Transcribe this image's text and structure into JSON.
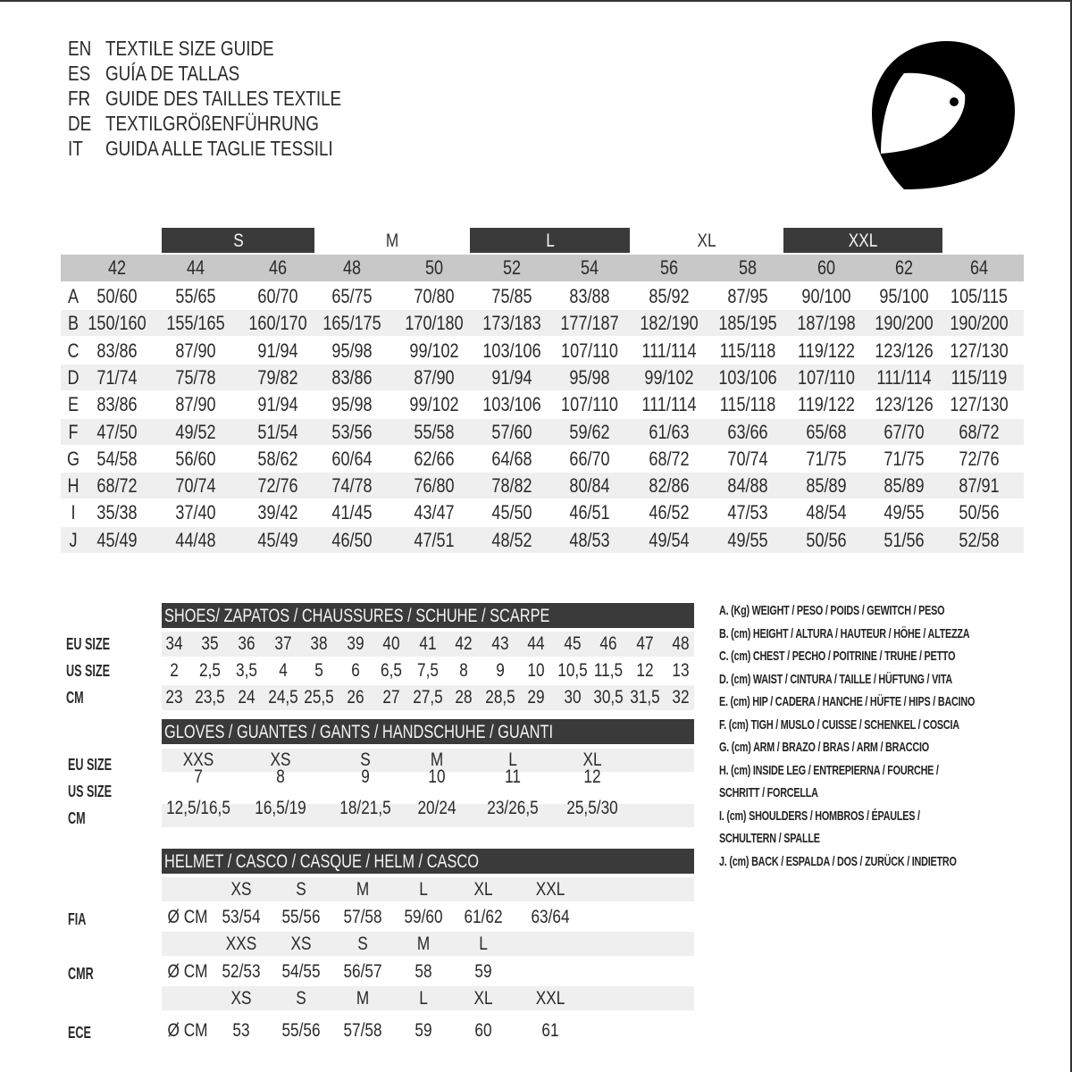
{
  "titles": [
    {
      "code": "EN",
      "text": "TEXTILE SIZE GUIDE"
    },
    {
      "code": "ES",
      "text": "GUÍA DE TALLAS"
    },
    {
      "code": "FR",
      "text": "GUIDE DES TAILLES TEXTILE"
    },
    {
      "code": "DE",
      "text": "TEXTILGRÖßENFÜHRUNG"
    },
    {
      "code": "IT",
      "text": "GUIDA ALLE TAGLIE TESSILI"
    }
  ],
  "icon": "helmet-icon",
  "colors": {
    "dark_bar": "#3a3a3a",
    "header_gray": "#c8c8c8",
    "stripe": "#efefef"
  },
  "textile": {
    "size_bands": [
      "S",
      "M",
      "L",
      "XL",
      "XXL"
    ],
    "columns": [
      "42",
      "44",
      "46",
      "48",
      "50",
      "52",
      "54",
      "56",
      "58",
      "60",
      "62",
      "64"
    ],
    "rows": [
      {
        "label": "A",
        "values": [
          "50/60",
          "55/65",
          "60/70",
          "65/75",
          "70/80",
          "75/85",
          "83/88",
          "85/92",
          "87/95",
          "90/100",
          "95/100",
          "105/115"
        ]
      },
      {
        "label": "B",
        "values": [
          "150/160",
          "155/165",
          "160/170",
          "165/175",
          "170/180",
          "173/183",
          "177/187",
          "182/190",
          "185/195",
          "187/198",
          "190/200",
          "190/200"
        ]
      },
      {
        "label": "C",
        "values": [
          "83/86",
          "87/90",
          "91/94",
          "95/98",
          "99/102",
          "103/106",
          "107/110",
          "111/114",
          "115/118",
          "119/122",
          "123/126",
          "127/130"
        ]
      },
      {
        "label": "D",
        "values": [
          "71/74",
          "75/78",
          "79/82",
          "83/86",
          "87/90",
          "91/94",
          "95/98",
          "99/102",
          "103/106",
          "107/110",
          "111/114",
          "115/119"
        ]
      },
      {
        "label": "E",
        "values": [
          "83/86",
          "87/90",
          "91/94",
          "95/98",
          "99/102",
          "103/106",
          "107/110",
          "111/114",
          "115/118",
          "119/122",
          "123/126",
          "127/130"
        ]
      },
      {
        "label": "F",
        "values": [
          "47/50",
          "49/52",
          "51/54",
          "53/56",
          "55/58",
          "57/60",
          "59/62",
          "61/63",
          "63/66",
          "65/68",
          "67/70",
          "68/72"
        ]
      },
      {
        "label": "G",
        "values": [
          "54/58",
          "56/60",
          "58/62",
          "60/64",
          "62/66",
          "64/68",
          "66/70",
          "68/72",
          "70/74",
          "71/75",
          "71/75",
          "72/76"
        ]
      },
      {
        "label": "H",
        "values": [
          "68/72",
          "70/74",
          "72/76",
          "74/78",
          "76/80",
          "78/82",
          "80/84",
          "82/86",
          "84/88",
          "85/89",
          "85/89",
          "87/91"
        ]
      },
      {
        "label": "I",
        "values": [
          "35/38",
          "37/40",
          "39/42",
          "41/45",
          "43/47",
          "45/50",
          "46/51",
          "46/52",
          "47/53",
          "48/54",
          "49/55",
          "50/56"
        ]
      },
      {
        "label": "J",
        "values": [
          "45/49",
          "44/48",
          "45/49",
          "46/50",
          "47/51",
          "48/52",
          "48/53",
          "49/54",
          "49/55",
          "50/56",
          "51/56",
          "52/58"
        ]
      }
    ]
  },
  "shoes": {
    "title": "SHOES/ ZAPATOS / CHAUSSURES / SCHUHE / SCARPE",
    "rows": [
      {
        "label": "EU SIZE",
        "values": [
          "34",
          "35",
          "36",
          "37",
          "38",
          "39",
          "40",
          "41",
          "42",
          "43",
          "44",
          "45",
          "46",
          "47",
          "48"
        ]
      },
      {
        "label": "US SIZE",
        "values": [
          "2",
          "2,5",
          "3,5",
          "4",
          "5",
          "6",
          "6,5",
          "7,5",
          "8",
          "9",
          "10",
          "10,5",
          "11,5",
          "12",
          "13"
        ]
      },
      {
        "label": "CM",
        "values": [
          "23",
          "23,5",
          "24",
          "24,5",
          "25,5",
          "26",
          "27",
          "27,5",
          "28",
          "28,5",
          "29",
          "30",
          "30,5",
          "31,5",
          "32"
        ]
      }
    ]
  },
  "gloves": {
    "title": "GLOVES / GUANTES / GANTS / HANDSCHUHE / GUANTI",
    "rows": [
      {
        "label": "EU SIZE",
        "values": [
          "XXS",
          "XS",
          "S",
          "M",
          "L",
          "XL"
        ]
      },
      {
        "label": "US SIZE",
        "values": [
          "7",
          "8",
          "9",
          "10",
          "11",
          "12"
        ]
      },
      {
        "label": "CM",
        "values": [
          "12,5/16,5",
          "16,5/19",
          "18/21,5",
          "20/24",
          "23/26,5",
          "25,5/30"
        ]
      }
    ]
  },
  "helmet": {
    "title": "HELMET / CASCO / CASQUE / HELM / CASCO",
    "unit": "Ø CM",
    "groups": [
      {
        "label": "FIA",
        "sizes": [
          "XS",
          "S",
          "M",
          "L",
          "XL",
          "XXL"
        ],
        "values": [
          "53/54",
          "55/56",
          "57/58",
          "59/60",
          "61/62",
          "63/64"
        ]
      },
      {
        "label": "CMR",
        "sizes": [
          "XXS",
          "XS",
          "S",
          "M",
          "L"
        ],
        "values": [
          "52/53",
          "54/55",
          "56/57",
          "58",
          "59"
        ]
      },
      {
        "label": "ECE",
        "sizes": [
          "XS",
          "S",
          "M",
          "L",
          "XL",
          "XXL"
        ],
        "values": [
          "53",
          "55/56",
          "57/58",
          "59",
          "60",
          "61"
        ]
      }
    ]
  },
  "legend": [
    "A. (Kg) WEIGHT / PESO / POIDS / GEWITCH / PESO",
    "B. (cm) HEIGHT / ALTURA / HAUTEUR / HÖHE / ALTEZZA",
    "C. (cm) CHEST / PECHO / POITRINE / TRUHE / PETTO",
    "D. (cm) WAIST / CINTURA / TAILLE / HÜFTUNG / VITA",
    "E. (cm) HIP / CADERA / HANCHE / HÜFTE / HIPS /  BACINO",
    "F.  (cm) TIGH / MUSLO / CUISSE / SCHENKEL / COSCIA",
    "G. (cm) ARM  / BRAZO / BRAS / ARM / BRACCIO",
    "H. (cm) INSIDE LEG / ENTREPIERNA / FOURCHE /",
    "SCHRITT / FORCELLA",
    "I.  (cm) SHOULDERS / HOMBROS / ÉPAULES /",
    "SCHULTERN / SPALLE",
    "J. (cm) BACK / ESPALDA / DOS / ZURÜCK / INDIETRO"
  ]
}
